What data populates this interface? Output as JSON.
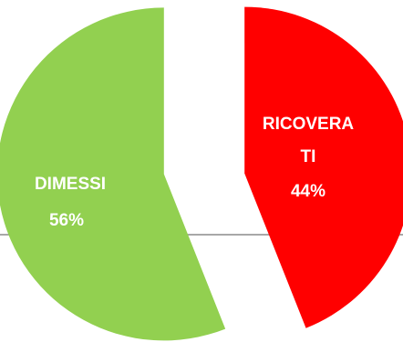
{
  "chart_data": {
    "type": "pie",
    "title": "",
    "slices": [
      {
        "label_lines": [
          "RICOVERA",
          "TI"
        ],
        "value_label": "44%",
        "value": 44,
        "color": "#ff0000"
      },
      {
        "label_lines": [
          "DIMESSI"
        ],
        "value_label": "56%",
        "value": 56,
        "color": "#92d050"
      }
    ],
    "baseline_color": "#8c8c8c"
  }
}
